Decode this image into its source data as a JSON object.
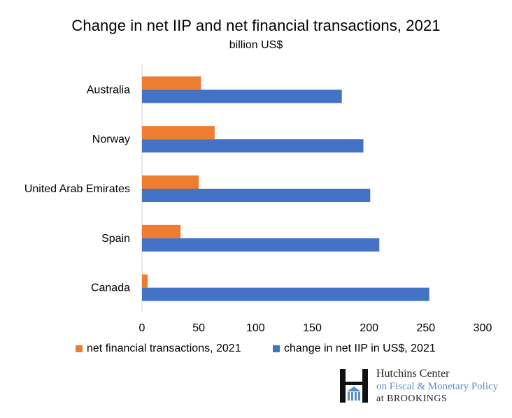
{
  "chart_data": {
    "type": "bar",
    "orientation": "horizontal",
    "title": "Change in net IIP and net financial transactions, 2021",
    "subtitle": "billion US$",
    "categories": [
      "Australia",
      "Norway",
      "United Arab Emirates",
      "Spain",
      "Canada"
    ],
    "series": [
      {
        "name": "net financial transactions, 2021",
        "color": "#ED7D31",
        "values": [
          52,
          64,
          50,
          34,
          5
        ]
      },
      {
        "name": "change in net IIP in US$, 2021",
        "color": "#4472C4",
        "values": [
          176,
          195,
          201,
          209,
          253
        ]
      }
    ],
    "xlim": [
      0,
      300
    ],
    "xticks": [
      "0",
      "50",
      "100",
      "150",
      "200",
      "250",
      "300"
    ],
    "grid": false,
    "legend_position": "bottom"
  },
  "logo": {
    "line1": "Hutchins Center",
    "line2": "on Fiscal & Monetary Policy",
    "line3": "at BROOKINGS",
    "icon": "brookings-h-icon"
  }
}
